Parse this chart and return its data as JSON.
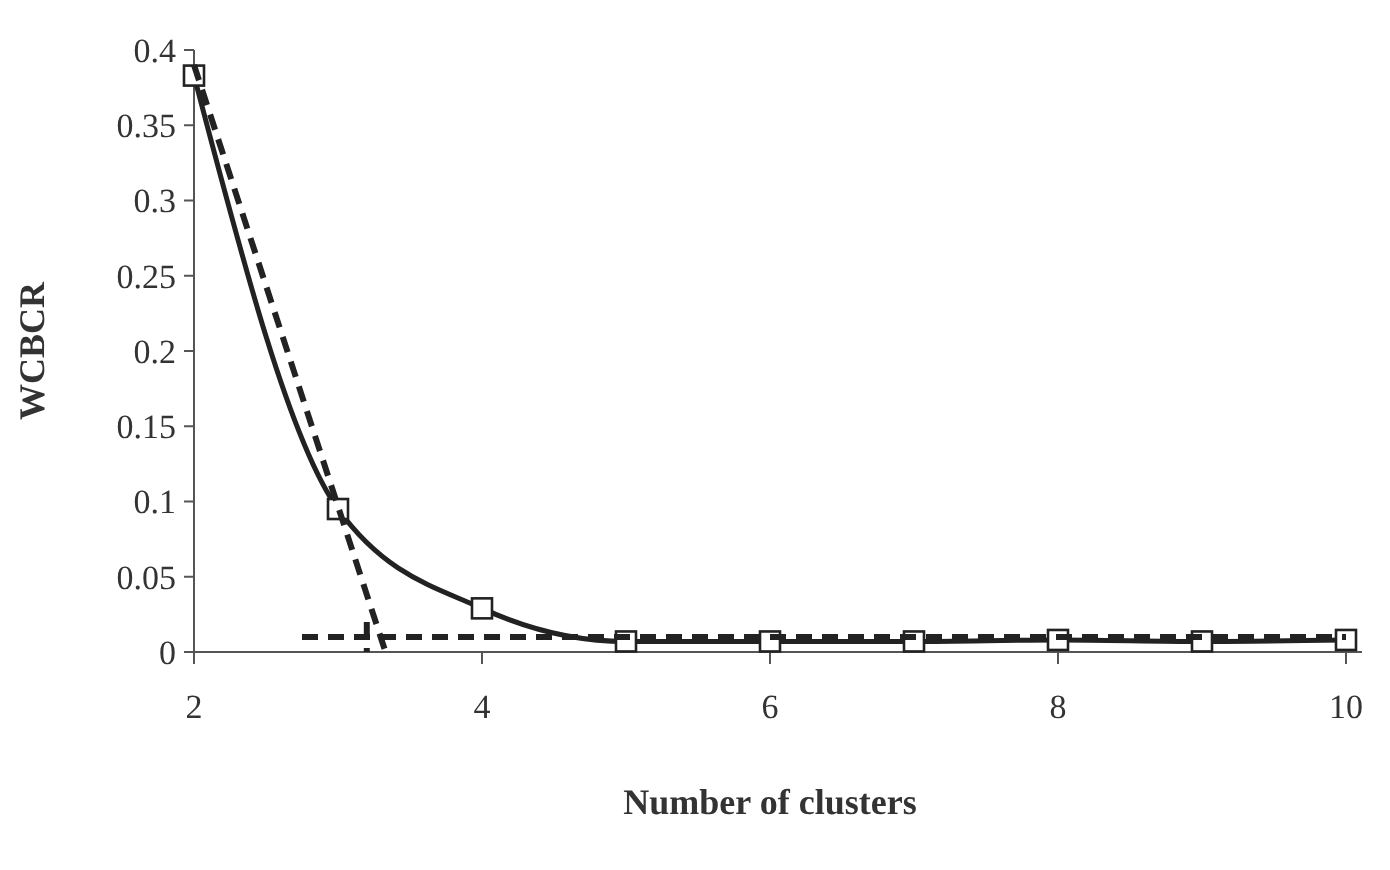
{
  "chart_data": {
    "type": "line",
    "xlabel": "Number of clusters",
    "ylabel": "WCBCR",
    "x": [
      2,
      3,
      4,
      5,
      6,
      7,
      8,
      9,
      10
    ],
    "series": [
      {
        "color": "#222222",
        "values": [
          0.383,
          0.095,
          0.029,
          0.007,
          0.007,
          0.007,
          0.008,
          0.007,
          0.008
        ],
        "marker": "square",
        "line_style": "solid"
      },
      {
        "type": "line",
        "color": "#222222",
        "x": [
          2,
          3.33
        ],
        "values": [
          0.39,
          0
        ],
        "marker": "none",
        "line_style": "dashed"
      },
      {
        "type": "line",
        "color": "#222222",
        "x": [
          2.75,
          10
        ],
        "values": [
          0.01,
          0.01
        ],
        "marker": "none",
        "line_style": "dashed"
      },
      {
        "type": "line",
        "color": "#222222",
        "x": [
          3.2,
          3.2
        ],
        "values": [
          0.02,
          0
        ],
        "marker": "none",
        "line_style": "dashed"
      }
    ],
    "xlim": [
      2,
      10
    ],
    "ylim": [
      0,
      0.4
    ],
    "xticks": [
      2,
      4,
      6,
      8,
      10
    ],
    "yticks": [
      0,
      0.05,
      0.1,
      0.15,
      0.2,
      0.25,
      0.3,
      0.35,
      0.4
    ],
    "grid": false
  }
}
